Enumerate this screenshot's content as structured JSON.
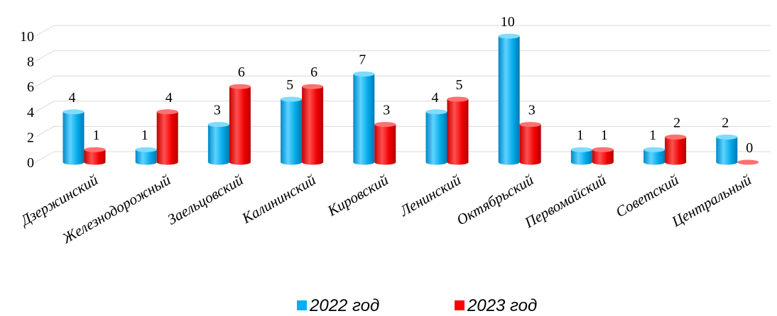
{
  "chart_data": {
    "type": "bar",
    "categories": [
      "Дзержинский",
      "Железнодорожный",
      "Заельцовский",
      "Калининский",
      "Кировский",
      "Ленинский",
      "Октябрьский",
      "Первомайский",
      "Советский",
      "Центральный"
    ],
    "series": [
      {
        "name": "2022 год",
        "values": [
          4,
          1,
          3,
          5,
          7,
          4,
          10,
          1,
          1,
          2
        ],
        "color": "#00B0F0"
      },
      {
        "name": "2023 год",
        "values": [
          1,
          4,
          6,
          6,
          3,
          5,
          3,
          1,
          2,
          0
        ],
        "color": "#FF0000"
      }
    ],
    "yticks": [
      0,
      2,
      4,
      6,
      8,
      10
    ],
    "ylim": [
      0,
      10
    ],
    "grid": true,
    "legend": "bottom",
    "style": "3d-cylinder"
  }
}
